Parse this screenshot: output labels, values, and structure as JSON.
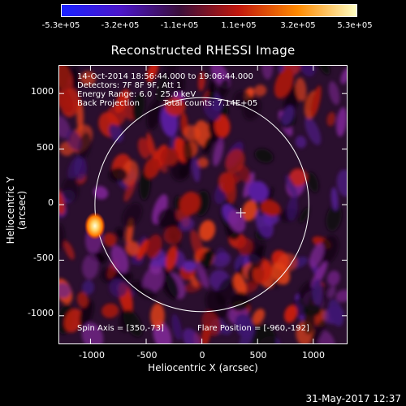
{
  "colorbar": {
    "tick_labels": [
      "-5.3e+05",
      "-3.2e+05",
      "-1.1e+05",
      "1.1e+05",
      "3.2e+05",
      "5.3e+05"
    ],
    "colors": [
      "#1a22ff",
      "#4b16c9",
      "#3a0e3a",
      "#c1170c",
      "#ff8a00",
      "#ffffc4"
    ]
  },
  "title": "Reconstructed RHESSI Image",
  "annotations": {
    "time_range": "14-Oct-2014 18:56:44.000 to 19:06:44.000",
    "detectors": "Detectors: 7F 8F 9F, Att 1",
    "energy_range": "Energy Range: 6.0 - 25.0 keV",
    "method": "Back Projection",
    "total_counts": "Total counts: 7.14E+05",
    "spin_axis": "Spin Axis = [350,-73]",
    "flare_position": "Flare Position = [-960,-192]"
  },
  "axes": {
    "xlabel": "Heliocentric X (arcsec)",
    "ylabel": "Heliocentric Y (arcsec)",
    "x_ticks": [
      "-1000",
      "-500",
      "0",
      "500",
      "1000"
    ],
    "y_ticks": [
      "1000",
      "500",
      "0",
      "-500",
      "-1000"
    ],
    "x_range": [
      -1280,
      1300
    ],
    "y_range": [
      -1250,
      1250
    ]
  },
  "image": {
    "background_color": "#2a0f2e",
    "solar_limb_radius_arcsec": 960,
    "bright_source_arcsec": [
      -960,
      -192
    ],
    "spin_axis_arcsec": [
      350,
      -73
    ]
  },
  "timestamp": "31-May-2017 12:37"
}
